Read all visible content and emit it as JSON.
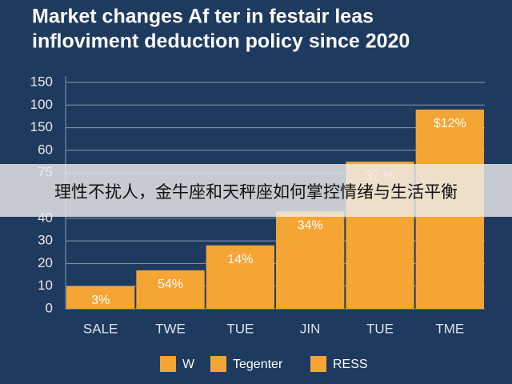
{
  "chart_data": {
    "type": "bar",
    "title": [
      "Market changes Af ter in festair leas",
      "infloviment deduction policy since 2020"
    ],
    "categories": [
      "SALE",
      "TWE",
      "TUE",
      "JIN",
      "TUE",
      "TME"
    ],
    "values": [
      10,
      17,
      28,
      43,
      65,
      88
    ],
    "annotations": [
      "3%",
      "54%",
      "14%",
      "34%",
      "37 %",
      "$12%"
    ],
    "color": "#f5a534",
    "ylim": [
      0,
      100
    ],
    "yticks": [
      0,
      10,
      20,
      30,
      40,
      {
        "value": 60,
        "label": "75"
      },
      {
        "value": 70,
        "label": "60"
      },
      {
        "value": 80,
        "label": "150"
      },
      {
        "value": 90,
        "label": "100"
      },
      {
        "value": 100,
        "label": "150"
      }
    ],
    "grid": true,
    "legend": [
      "W",
      "Tegenter",
      "RESS"
    ]
  },
  "overlay_caption": "理性不扰人，金牛座和天秤座如何掌控情绪与生活平衡"
}
